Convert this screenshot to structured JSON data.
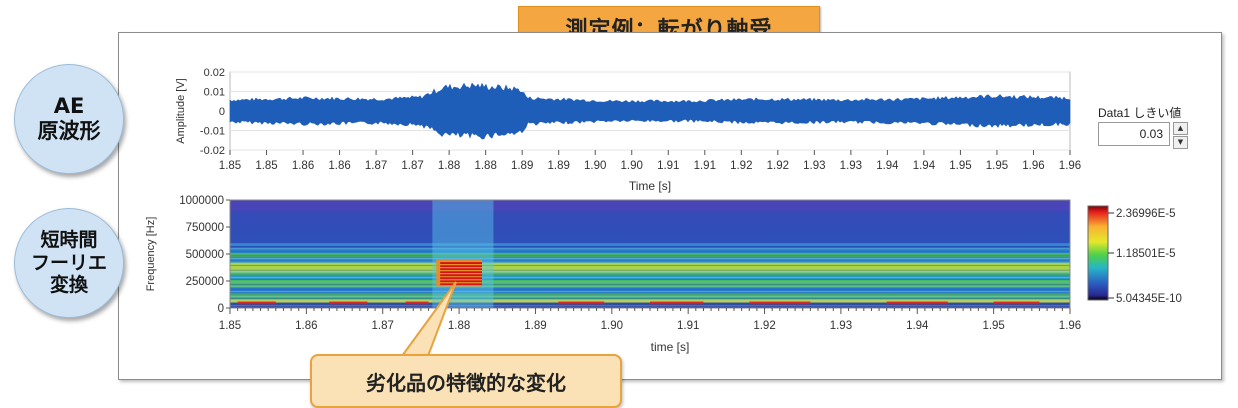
{
  "header": {
    "title": "測定例：転がり軸受"
  },
  "labels": {
    "ae": [
      "AE",
      "原波形"
    ],
    "stft": [
      "短時間",
      "フーリエ",
      "変換"
    ],
    "callout": "劣化品の特徴的な変化"
  },
  "threshold": {
    "label": "Data1 しきい値",
    "value": "0.03"
  },
  "colors": {
    "wave": "#1f5eb8",
    "badge": "#f4a640",
    "circle": "#cfe3f4"
  },
  "chart_data": [
    {
      "type": "area",
      "ylabel": "Amplitude [V]",
      "xlabel": "Time [s]",
      "xlim": [
        1.85,
        1.96
      ],
      "ylim": [
        -0.02,
        0.02
      ],
      "xticks": [
        "1.85",
        "1.85",
        "1.86",
        "1.86",
        "1.87",
        "1.87",
        "1.88",
        "1.88",
        "1.89",
        "1.89",
        "1.90",
        "1.90",
        "1.91",
        "1.91",
        "1.92",
        "1.92",
        "1.93",
        "1.93",
        "1.94",
        "1.94",
        "1.95",
        "1.95",
        "1.96",
        "1.96"
      ],
      "yticks": [
        "0.02",
        "0.01",
        "0",
        "-0.01",
        "-0.02"
      ],
      "envelope_x": [
        1.85,
        1.86,
        1.87,
        1.875,
        1.878,
        1.882,
        1.888,
        1.889,
        1.9,
        1.91,
        1.92,
        1.93,
        1.94,
        1.95,
        1.96
      ],
      "envelope_y": [
        0.0055,
        0.0065,
        0.006,
        0.007,
        0.012,
        0.013,
        0.011,
        0.0065,
        0.005,
        0.005,
        0.006,
        0.0055,
        0.006,
        0.0075,
        0.0065
      ]
    },
    {
      "type": "heatmap",
      "ylabel": "Frequency [Hz]",
      "xlabel": "time [s]",
      "xlim": [
        1.85,
        1.96
      ],
      "ylim": [
        0,
        1000000
      ],
      "xticks": [
        "1.85",
        "1.86",
        "1.87",
        "1.88",
        "1.89",
        "1.90",
        "1.91",
        "1.92",
        "1.93",
        "1.94",
        "1.95",
        "1.96"
      ],
      "yticks": [
        "1000000",
        "750000",
        "500000",
        "250000",
        "0"
      ],
      "colorbar": {
        "max": "2.36996E-5",
        "mid": "1.18501E-5",
        "min": "5.04345E-10"
      },
      "highlight": {
        "x_range": [
          1.877,
          1.883
        ],
        "freq_range": [
          200000,
          450000
        ]
      }
    }
  ]
}
